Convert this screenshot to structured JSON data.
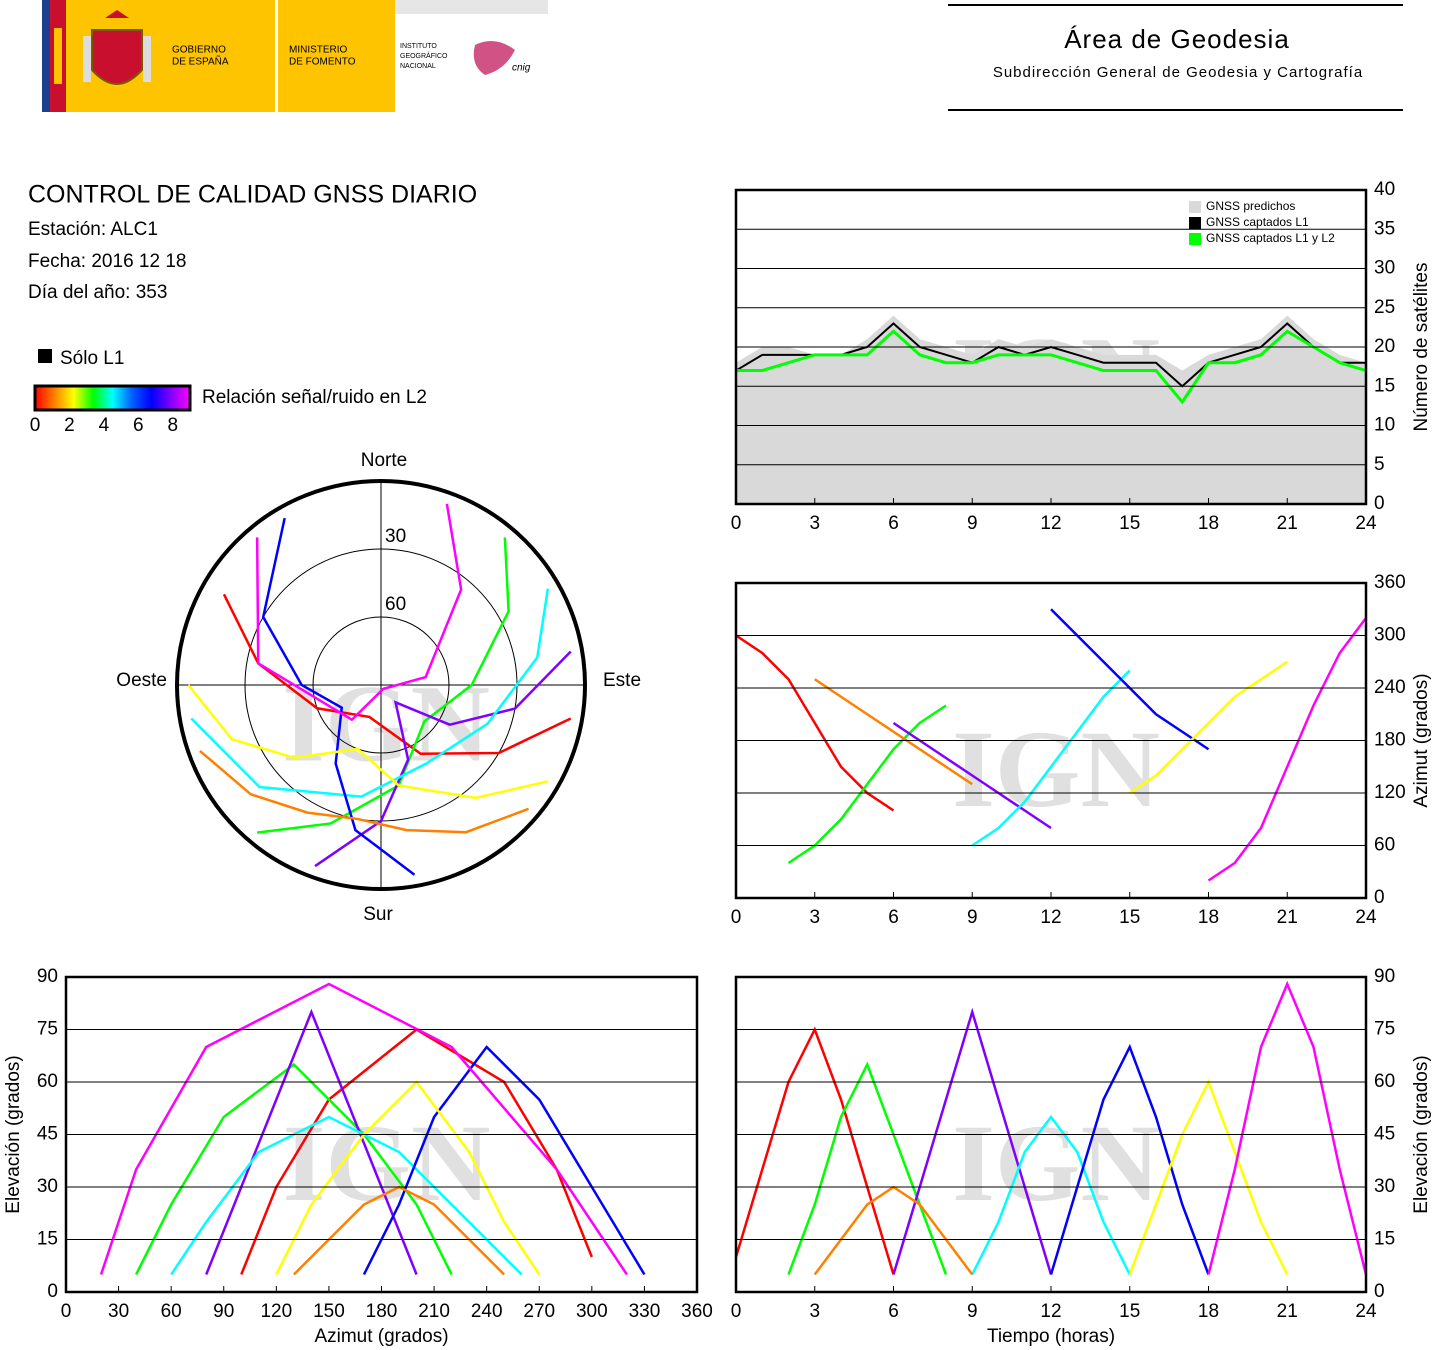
{
  "header": {
    "gobierno": [
      "GOBIERNO",
      "DE ESPAÑA"
    ],
    "ministerio": [
      "MINISTERIO",
      "DE FOMENTO"
    ],
    "instituto": [
      "INSTITUTO",
      "GEOGRÁFICO",
      "NACIONAL"
    ],
    "cnig": "cnig",
    "area": "Área de Geodesia",
    "subdireccion": "Subdirección General de Geodesia y Cartografía"
  },
  "info": {
    "title": "CONTROL DE CALIDAD GNSS DIARIO",
    "station": "Estación: ALC1",
    "date": "Fecha: 2016 12 18",
    "doy": "Día del año: 353"
  },
  "legend": {
    "only_l1": "Sólo L1",
    "only_l1_color": "#000000",
    "snr_label": "Relación señal/ruido en L2",
    "snr_lim": [
      0,
      9
    ],
    "snr_ticks": [
      0,
      2,
      4,
      6,
      8
    ],
    "snr_colors": [
      "#ff0000",
      "#ff8000",
      "#ffff00",
      "#00ff00",
      "#00ffff",
      "#0060ff",
      "#0000ff",
      "#8000ff",
      "#ff00ff"
    ]
  },
  "watermark": "IGN",
  "chart_data": [
    {
      "type": "line",
      "x": [
        0,
        1,
        2,
        3,
        4,
        5,
        6,
        7,
        8,
        9,
        10,
        11,
        12,
        13,
        14,
        15,
        16,
        17,
        18,
        19,
        20,
        21,
        22,
        23,
        24
      ],
      "series": [
        {
          "name": "GNSS predichos",
          "color": "#d9d9d9",
          "values": [
            18,
            20,
            20,
            19,
            19,
            21,
            24,
            21,
            20,
            19,
            21,
            20,
            21,
            20,
            19,
            19,
            19,
            17,
            19,
            20,
            21,
            24,
            21,
            19,
            18
          ]
        },
        {
          "name": "GNSS captados L1",
          "color": "#000000",
          "values": [
            17,
            19,
            19,
            19,
            19,
            20,
            23,
            20,
            19,
            18,
            20,
            19,
            20,
            19,
            18,
            18,
            18,
            15,
            18,
            19,
            20,
            23,
            20,
            18,
            18
          ]
        },
        {
          "name": "GNSS captados L1 y L2",
          "color": "#00ff00",
          "values": [
            17,
            17,
            18,
            19,
            19,
            19,
            22,
            19,
            18,
            18,
            19,
            19,
            19,
            18,
            17,
            17,
            17,
            13,
            18,
            18,
            19,
            22,
            20,
            18,
            17
          ]
        }
      ],
      "xlim": [
        0,
        24
      ],
      "xticks": [
        0,
        3,
        6,
        9,
        12,
        15,
        18,
        21,
        24
      ],
      "ylim": [
        0,
        40
      ],
      "yticks": [
        0,
        5,
        10,
        15,
        20,
        25,
        30,
        35,
        40
      ],
      "ylabel": "Número de satélites",
      "grid": true
    },
    {
      "type": "scatter",
      "xlim": [
        0,
        24
      ],
      "xticks": [
        0,
        3,
        6,
        9,
        12,
        15,
        18,
        21,
        24
      ],
      "ylim": [
        0,
        360
      ],
      "yticks": [
        0,
        60,
        120,
        180,
        240,
        300,
        360
      ],
      "ylabel": "Azimut (grados)",
      "grid": true
    },
    {
      "type": "scatter",
      "xlim": [
        0,
        360
      ],
      "xticks": [
        0,
        30,
        60,
        90,
        120,
        150,
        180,
        210,
        240,
        270,
        300,
        330,
        360
      ],
      "ylim": [
        0,
        90
      ],
      "yticks": [
        0,
        15,
        30,
        45,
        60,
        75,
        90
      ],
      "xlabel": "Azimut (grados)",
      "ylabel": "Elevación (grados)",
      "grid": true
    },
    {
      "type": "scatter",
      "xlim": [
        0,
        24
      ],
      "xticks": [
        0,
        3,
        6,
        9,
        12,
        15,
        18,
        21,
        24
      ],
      "ylim": [
        0,
        90
      ],
      "yticks": [
        0,
        15,
        30,
        45,
        60,
        75,
        90
      ],
      "xlabel": "Tiempo (horas)",
      "ylabel": "Elevación (grados)",
      "grid": true
    },
    {
      "type": "polar",
      "north": "Norte",
      "south": "Sur",
      "west": "Oeste",
      "east": "Este",
      "rlim": [
        90,
        0
      ],
      "rticks": [
        30,
        60
      ]
    }
  ],
  "tracks": [
    {
      "color": "#ff0000",
      "time": [
        0,
        1,
        2,
        3,
        4,
        5,
        6
      ],
      "azimuth": [
        300,
        280,
        250,
        200,
        150,
        120,
        100
      ],
      "elevation": [
        10,
        35,
        60,
        75,
        55,
        30,
        5
      ]
    },
    {
      "color": "#00ff00",
      "time": [
        2,
        3,
        4,
        5,
        6,
        7,
        8
      ],
      "azimuth": [
        40,
        60,
        90,
        130,
        170,
        200,
        220
      ],
      "elevation": [
        5,
        25,
        50,
        65,
        45,
        25,
        5
      ]
    },
    {
      "color": "#8000ff",
      "time": [
        6,
        7,
        8,
        9,
        10,
        11,
        12
      ],
      "azimuth": [
        200,
        180,
        160,
        140,
        120,
        100,
        80
      ],
      "elevation": [
        5,
        30,
        55,
        80,
        55,
        30,
        5
      ]
    },
    {
      "color": "#00ffff",
      "time": [
        9,
        10,
        11,
        12,
        13,
        14,
        15
      ],
      "azimuth": [
        60,
        80,
        110,
        150,
        190,
        230,
        260
      ],
      "elevation": [
        5,
        20,
        40,
        50,
        40,
        20,
        5
      ]
    },
    {
      "color": "#0000ff",
      "time": [
        12,
        13,
        14,
        15,
        16,
        17,
        18
      ],
      "azimuth": [
        330,
        300,
        270,
        240,
        210,
        190,
        170
      ],
      "elevation": [
        5,
        30,
        55,
        70,
        50,
        25,
        5
      ]
    },
    {
      "color": "#ffff00",
      "time": [
        15,
        16,
        17,
        18,
        19,
        20,
        21
      ],
      "azimuth": [
        120,
        140,
        170,
        200,
        230,
        250,
        270
      ],
      "elevation": [
        5,
        25,
        45,
        60,
        40,
        20,
        5
      ]
    },
    {
      "color": "#ff00ff",
      "time": [
        18,
        19,
        20,
        21,
        22,
        23,
        24
      ],
      "azimuth": [
        20,
        40,
        80,
        150,
        220,
        280,
        320
      ],
      "elevation": [
        5,
        35,
        70,
        88,
        70,
        35,
        5
      ]
    },
    {
      "color": "#ff8000",
      "time": [
        3,
        4,
        5,
        6,
        7,
        8,
        9
      ],
      "azimuth": [
        250,
        230,
        210,
        190,
        170,
        150,
        130
      ],
      "elevation": [
        5,
        15,
        25,
        30,
        25,
        15,
        5
      ]
    }
  ]
}
